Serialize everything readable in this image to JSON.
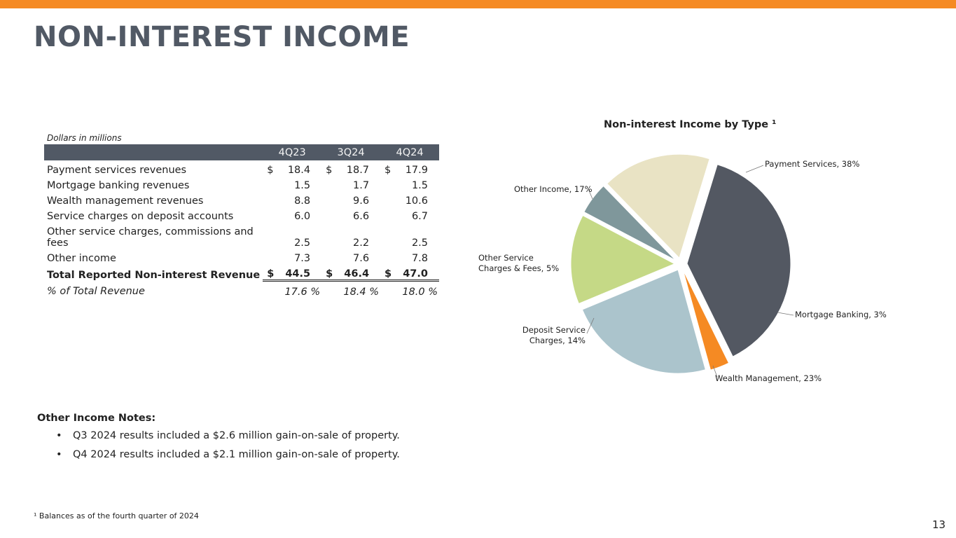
{
  "page": {
    "title": "NON-INTEREST INCOME",
    "page_number": "13"
  },
  "table": {
    "units": "Dollars in millions",
    "columns": [
      "4Q23",
      "3Q24",
      "4Q24"
    ],
    "rows": [
      {
        "label": "Payment services revenues",
        "values": [
          "18.4",
          "18.7",
          "17.9"
        ],
        "currency": "$"
      },
      {
        "label": "Mortgage banking revenues",
        "values": [
          "1.5",
          "1.7",
          "1.5"
        ],
        "currency": ""
      },
      {
        "label": "Wealth management revenues",
        "values": [
          "8.8",
          "9.6",
          "10.6"
        ],
        "currency": ""
      },
      {
        "label": "Service charges on deposit accounts",
        "values": [
          "6.0",
          "6.6",
          "6.7"
        ],
        "currency": ""
      },
      {
        "label": "Other service charges, commissions and fees",
        "values": [
          "2.5",
          "2.2",
          "2.5"
        ],
        "currency": ""
      },
      {
        "label": "Other income",
        "values": [
          "7.3",
          "7.6",
          "7.8"
        ],
        "currency": ""
      }
    ],
    "total": {
      "label": "Total Reported Non-interest Revenue",
      "values": [
        "44.5",
        "46.4",
        "47.0"
      ],
      "currency": "$"
    },
    "pct": {
      "label": "% of Total Revenue",
      "values": [
        "17.6 %",
        "18.4 %",
        "18.0 %"
      ]
    }
  },
  "notes": {
    "title": "Other Income Notes:",
    "bullet": "•",
    "items": [
      "Q3 2024 results included a $2.6 million gain-on-sale of property.",
      "Q4 2024 results included a $2.1 million gain-on-sale of property."
    ]
  },
  "footnote": "¹ Balances as of the fourth quarter of 2024",
  "chart_data": {
    "type": "pie",
    "title": "Non-interest Income by Type ¹",
    "slices": [
      {
        "name": "Payment Services",
        "value": 38,
        "label": "Payment Services, 38%",
        "color": "#535862"
      },
      {
        "name": "Mortgage Banking",
        "value": 3,
        "label": "Mortgage Banking, 3%",
        "color": "#f58a23"
      },
      {
        "name": "Wealth Management",
        "value": 23,
        "label": "Wealth Management, 23%",
        "color": "#abc4cc"
      },
      {
        "name": "Deposit Service Charges",
        "value": 14,
        "label": "Deposit Service Charges, 14%",
        "label_lines": [
          "Deposit Service",
          "Charges, 14%"
        ],
        "color": "#c5d986"
      },
      {
        "name": "Other Service Charges & Fees",
        "value": 5,
        "label": "Other Service Charges & Fees, 5%",
        "label_lines": [
          "Other Service",
          "Charges & Fees, 5%"
        ],
        "color": "#7f979b"
      },
      {
        "name": "Other Income",
        "value": 17,
        "label": "Other Income, 17%",
        "color": "#e9e3c4"
      }
    ],
    "start_angle_deg": 17,
    "direction": "clockwise",
    "exploded": true
  }
}
